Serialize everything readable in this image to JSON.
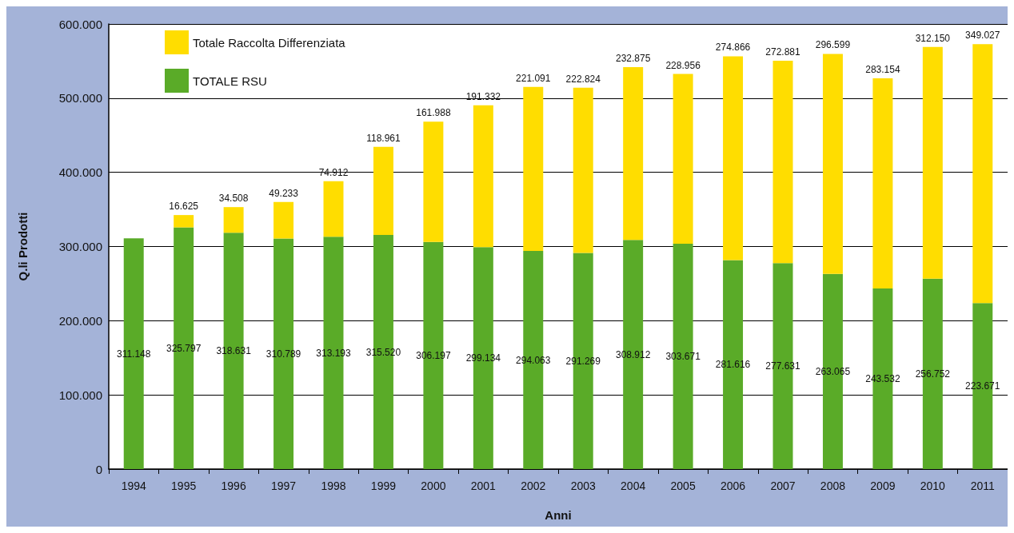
{
  "chart_data": {
    "type": "bar",
    "stacked": true,
    "xlabel": "Anni",
    "ylabel": "Q.li Prodotti",
    "categories": [
      "1994",
      "1995",
      "1996",
      "1997",
      "1998",
      "1999",
      "2000",
      "2001",
      "2002",
      "2003",
      "2004",
      "2005",
      "2006",
      "2007",
      "2008",
      "2009",
      "2010",
      "2011"
    ],
    "series": [
      {
        "name": "TOTALE RSU",
        "color": "#5aab28",
        "values": [
          311148,
          325797,
          318631,
          310789,
          313193,
          315520,
          306197,
          299134,
          294063,
          291269,
          308912,
          303671,
          281616,
          277631,
          263065,
          243532,
          256752,
          223671
        ],
        "value_labels": [
          "311.148",
          "325.797",
          "318.631",
          "310.789",
          "313.193",
          "315.520",
          "306.197",
          "299.134",
          "294.063",
          "291.269",
          "308.912",
          "303.671",
          "281.616",
          "277.631",
          "263.065",
          "243.532",
          "256.752",
          "223.671"
        ]
      },
      {
        "name": "Totale Raccolta Differenziata",
        "color": "#ffdd00",
        "values": [
          null,
          16625,
          34508,
          49233,
          74912,
          118961,
          161988,
          191332,
          221091,
          222824,
          232875,
          228956,
          274866,
          272881,
          296599,
          283154,
          312150,
          349027
        ],
        "value_labels": [
          null,
          "16.625",
          "34.508",
          "49.233",
          "74.912",
          "118.961",
          "161.988",
          "191.332",
          "221.091",
          "222.824",
          "232.875",
          "228.956",
          "274.866",
          "272.881",
          "296.599",
          "283.154",
          "312.150",
          "349.027"
        ]
      }
    ],
    "ylim": [
      0,
      600000
    ],
    "yticks": [
      0,
      {
        "value": 100000,
        "label": "100.000"
      },
      {
        "value": 200000,
        "label": "200.000"
      },
      {
        "value": 300000,
        "label": "300.000"
      },
      {
        "value": 400000,
        "label": "400.000"
      },
      {
        "value": 500000,
        "label": "500.000"
      },
      {
        "value": 600000,
        "label": "600.000"
      }
    ],
    "grid": "y",
    "legend": "top left"
  }
}
